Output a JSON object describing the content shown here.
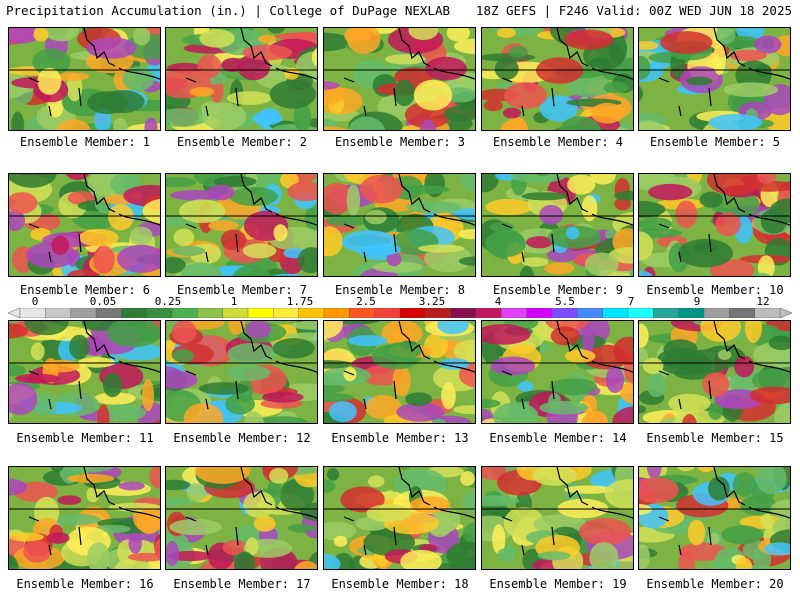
{
  "header": {
    "title": "Precipitation Accumulation (in.) | College of DuPage NEXLAB",
    "run_info": "18Z GEFS | F246 Valid: 00Z WED JUN 18 2025"
  },
  "members": [
    {
      "label": "Ensemble Member: 1"
    },
    {
      "label": "Ensemble Member: 2"
    },
    {
      "label": "Ensemble Member: 3"
    },
    {
      "label": "Ensemble Member: 4"
    },
    {
      "label": "Ensemble Member: 5"
    },
    {
      "label": "Ensemble Member: 6"
    },
    {
      "label": "Ensemble Member: 7"
    },
    {
      "label": "Ensemble Member: 8"
    },
    {
      "label": "Ensemble Member: 9"
    },
    {
      "label": "Ensemble Member: 10"
    },
    {
      "label": "Ensemble Member: 11"
    },
    {
      "label": "Ensemble Member: 12"
    },
    {
      "label": "Ensemble Member: 13"
    },
    {
      "label": "Ensemble Member: 14"
    },
    {
      "label": "Ensemble Member: 15"
    },
    {
      "label": "Ensemble Member: 16"
    },
    {
      "label": "Ensemble Member: 17"
    },
    {
      "label": "Ensemble Member: 18"
    },
    {
      "label": "Ensemble Member: 19"
    },
    {
      "label": "Ensemble Member: 20"
    }
  ],
  "legend": {
    "ticks": [
      "0",
      "0.05",
      "0.25",
      "1",
      "1.75",
      "2.5",
      "3.25",
      "4",
      "5.5",
      "7",
      "9",
      "12"
    ],
    "colors": [
      "#e6e6e6",
      "#c8c8c8",
      "#a0a0a0",
      "#787878",
      "#2e7d32",
      "#388e3c",
      "#4caf50",
      "#8bc34a",
      "#cddc39",
      "#ffff00",
      "#ffeb3b",
      "#ffc107",
      "#ff9800",
      "#ff5722",
      "#f44336",
      "#d50000",
      "#b71c1c",
      "#880e4f",
      "#c2185b",
      "#e040fb",
      "#d500f9",
      "#7c4dff",
      "#448aff",
      "#00e5ff",
      "#18ffff",
      "#26a69a",
      "#009688",
      "#9e9e9e",
      "#757575",
      "#bdbdbd"
    ]
  }
}
